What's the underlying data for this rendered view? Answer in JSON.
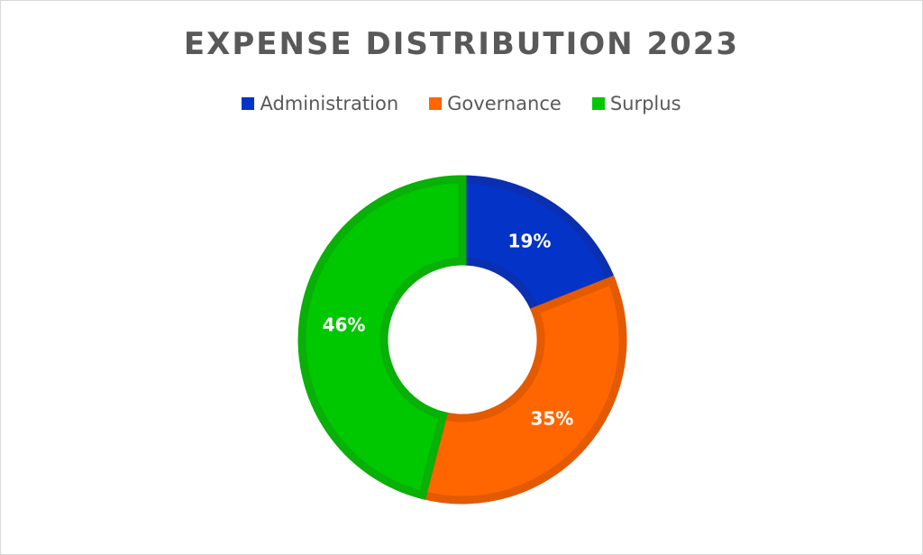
{
  "chart_data": {
    "type": "pie",
    "subtype": "donut",
    "title": "EXPENSE DISTRIBUTION 2023",
    "legend_position": "top",
    "categories": [
      "Administration",
      "Governance",
      "Surplus"
    ],
    "values": [
      19,
      35,
      46
    ],
    "labels": [
      "19%",
      "35%",
      "46%"
    ],
    "colors": [
      "#0433c8",
      "#ff6600",
      "#00c800"
    ],
    "edge_colors": [
      "#0a2fb0",
      "#e35a00",
      "#08b008"
    ]
  }
}
